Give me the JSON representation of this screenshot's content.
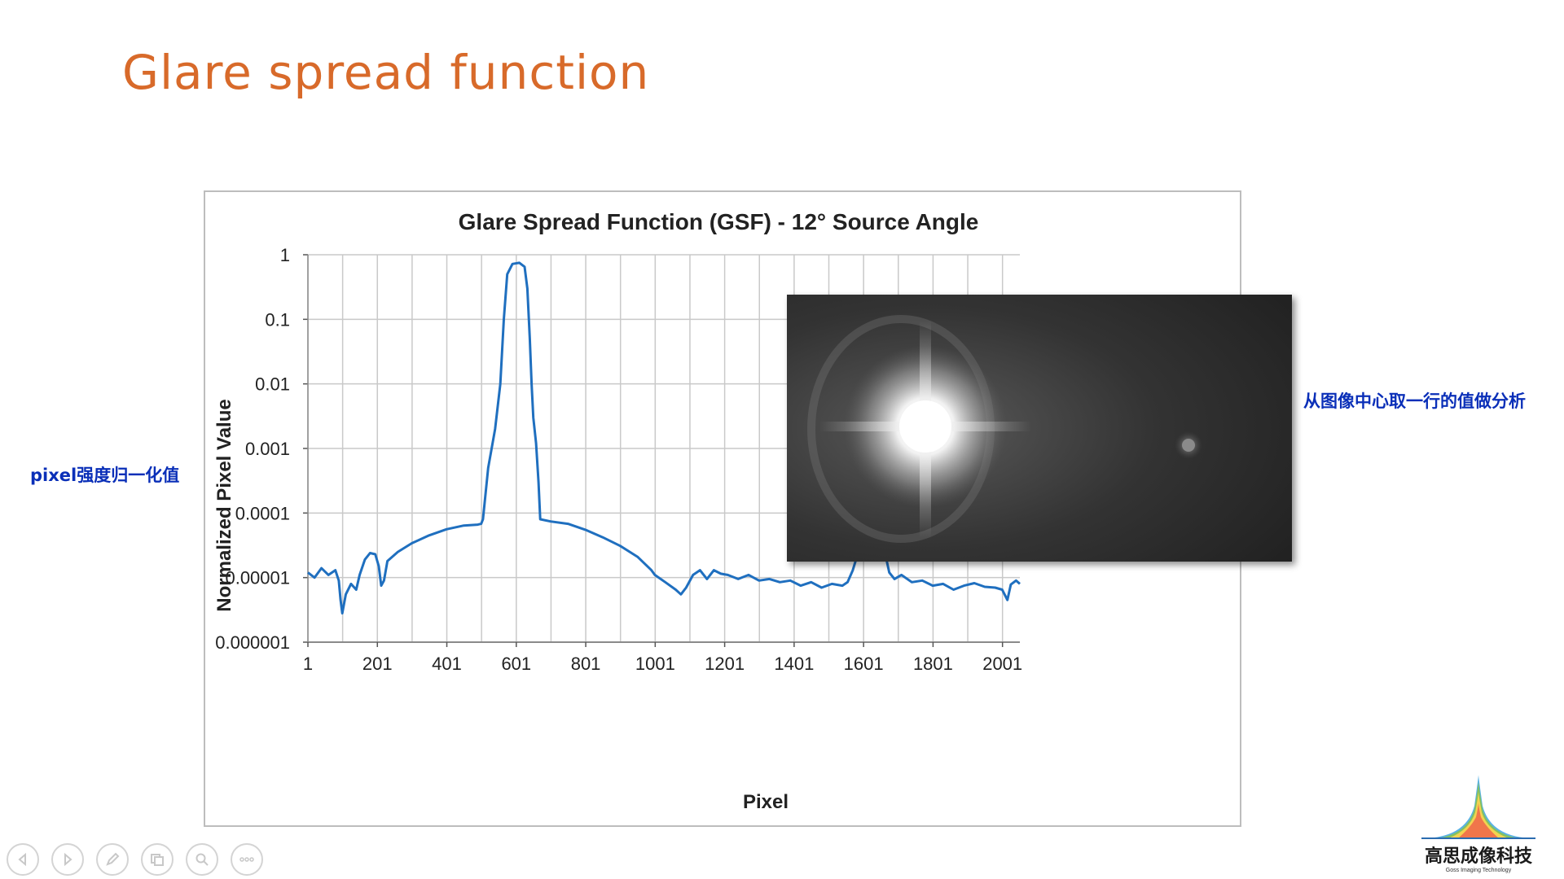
{
  "slide": {
    "title": "Glare spread function",
    "annotation_left": "pixel强度归一化值",
    "annotation_right": "从图像中心取一行的值做分析"
  },
  "logo": {
    "name": "高思成像科技",
    "subtitle": "Goss Imaging Technology"
  },
  "toolbar": {
    "icons": [
      "prev-icon",
      "next-icon",
      "pen-icon",
      "slides-icon",
      "zoom-icon",
      "more-icon"
    ]
  },
  "colors": {
    "title": "#D86A2A",
    "series": "#1F6FBF",
    "annotation": "#0A2FB8"
  },
  "chart_data": {
    "type": "line",
    "title": "Glare Spread Function (GSF) - 12° Source Angle",
    "xlabel": "Pixel",
    "ylabel": "Normalized Pixel Value",
    "x_ticks": [
      1,
      201,
      401,
      601,
      801,
      1001,
      1201,
      1401,
      1601,
      1801,
      2001
    ],
    "xlim": [
      1,
      2051
    ],
    "y_scale": "log",
    "y_ticks": [
      {
        "value": 1,
        "label": "1"
      },
      {
        "value": 0.1,
        "label": "0.1"
      },
      {
        "value": 0.01,
        "label": "0.01"
      },
      {
        "value": 0.001,
        "label": "0.001"
      },
      {
        "value": 0.0001,
        "label": "0.0001"
      },
      {
        "value": 1e-05,
        "label": "0.00001"
      },
      {
        "value": 1e-06,
        "label": "0.000001"
      }
    ],
    "ylim": [
      1e-06,
      1
    ],
    "grid": true,
    "legend": "none",
    "series": [
      {
        "points": [
          [
            1,
            1.2e-05
          ],
          [
            20,
            1e-05
          ],
          [
            40,
            1.4e-05
          ],
          [
            60,
            1.1e-05
          ],
          [
            80,
            1.3e-05
          ],
          [
            90,
            9e-06
          ],
          [
            95,
            4.5e-06
          ],
          [
            100,
            2.8e-06
          ],
          [
            110,
            5.5e-06
          ],
          [
            125,
            8e-06
          ],
          [
            140,
            6.5e-06
          ],
          [
            150,
            1.1e-05
          ],
          [
            165,
            1.9e-05
          ],
          [
            180,
            2.4e-05
          ],
          [
            195,
            2.3e-05
          ],
          [
            205,
            1.5e-05
          ],
          [
            212,
            7.5e-06
          ],
          [
            220,
            9e-06
          ],
          [
            230,
            1.8e-05
          ],
          [
            260,
            2.5e-05
          ],
          [
            300,
            3.4e-05
          ],
          [
            350,
            4.5e-05
          ],
          [
            400,
            5.6e-05
          ],
          [
            450,
            6.4e-05
          ],
          [
            490,
            6.6e-05
          ],
          [
            500,
            6.8e-05
          ],
          [
            505,
            8e-05
          ],
          [
            520,
            0.0005
          ],
          [
            540,
            0.002
          ],
          [
            555,
            0.01
          ],
          [
            565,
            0.1
          ],
          [
            575,
            0.5
          ],
          [
            590,
            0.72
          ],
          [
            610,
            0.75
          ],
          [
            625,
            0.65
          ],
          [
            633,
            0.3
          ],
          [
            640,
            0.05
          ],
          [
            645,
            0.01
          ],
          [
            650,
            0.003
          ],
          [
            658,
            0.0012
          ],
          [
            665,
            0.0003
          ],
          [
            670,
            8e-05
          ],
          [
            700,
            7.4e-05
          ],
          [
            750,
            6.8e-05
          ],
          [
            800,
            5.5e-05
          ],
          [
            850,
            4.2e-05
          ],
          [
            900,
            3.1e-05
          ],
          [
            950,
            2.1e-05
          ],
          [
            990,
            1.3e-05
          ],
          [
            1000,
            1.1e-05
          ],
          [
            1030,
            8.5e-06
          ],
          [
            1060,
            6.5e-06
          ],
          [
            1075,
            5.5e-06
          ],
          [
            1090,
            7e-06
          ],
          [
            1110,
            1.1e-05
          ],
          [
            1130,
            1.3e-05
          ],
          [
            1150,
            9.5e-06
          ],
          [
            1170,
            1.3e-05
          ],
          [
            1190,
            1.15e-05
          ],
          [
            1210,
            1.1e-05
          ],
          [
            1240,
            9.5e-06
          ],
          [
            1270,
            1.1e-05
          ],
          [
            1300,
            9e-06
          ],
          [
            1330,
            9.5e-06
          ],
          [
            1360,
            8.5e-06
          ],
          [
            1390,
            9e-06
          ],
          [
            1420,
            7.5e-06
          ],
          [
            1450,
            8.5e-06
          ],
          [
            1480,
            7e-06
          ],
          [
            1510,
            8e-06
          ],
          [
            1540,
            7.5e-06
          ],
          [
            1555,
            8.5e-06
          ],
          [
            1570,
            1.3e-05
          ],
          [
            1585,
            2.4e-05
          ],
          [
            1600,
            3.1e-05
          ],
          [
            1620,
            3.3e-05
          ],
          [
            1645,
            3.3e-05
          ],
          [
            1660,
            2.8e-05
          ],
          [
            1675,
            1.2e-05
          ],
          [
            1690,
            9.5e-06
          ],
          [
            1710,
            1.1e-05
          ],
          [
            1740,
            8.5e-06
          ],
          [
            1770,
            9e-06
          ],
          [
            1800,
            7.5e-06
          ],
          [
            1830,
            8e-06
          ],
          [
            1860,
            6.5e-06
          ],
          [
            1890,
            7.5e-06
          ],
          [
            1920,
            8.2e-06
          ],
          [
            1950,
            7.2e-06
          ],
          [
            1980,
            7e-06
          ],
          [
            2000,
            6.5e-06
          ],
          [
            2015,
            4.5e-06
          ],
          [
            2025,
            7.8e-06
          ],
          [
            2040,
            9e-06
          ],
          [
            2051,
            8e-06
          ]
        ]
      }
    ]
  }
}
